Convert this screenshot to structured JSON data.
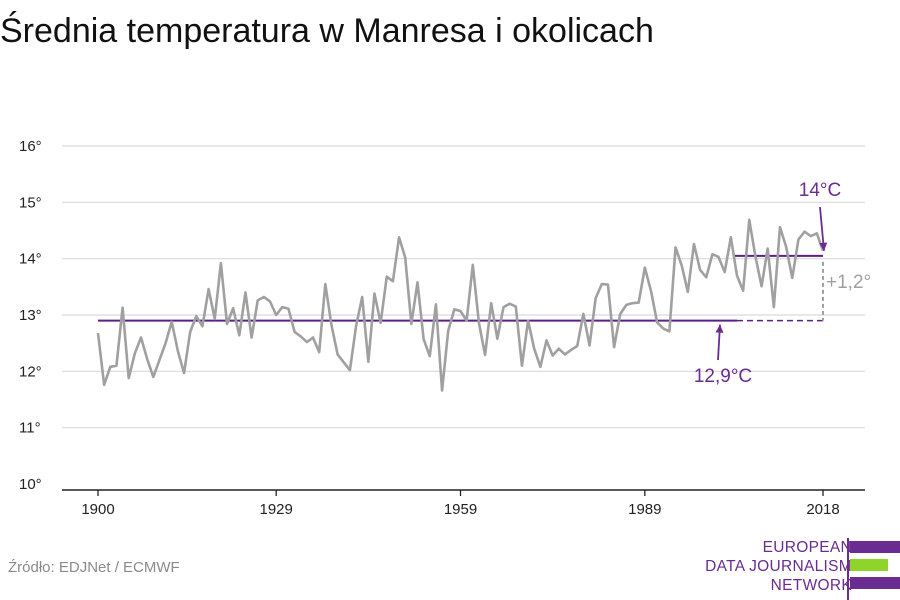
{
  "title": "Średnia temperatura w Manresa i okolicach",
  "source": "Źródło: EDJNet / ECMWF",
  "logo": {
    "lines": [
      "EUROPEAN",
      "DATA JOURNALISM",
      "NETWORK"
    ],
    "colors": {
      "purple": "#6b2c91",
      "green": "#8fd42a"
    }
  },
  "colors": {
    "series": "#a0a0a0",
    "baseline": "#5b1f86",
    "annotation": "#6b2c91",
    "delta": "#a0a0a0",
    "grid": "#d9d9d9",
    "axis": "#222222"
  },
  "chart_data": {
    "type": "line",
    "title": "Średnia temperatura w Manresa i okolicach",
    "xlabel": "",
    "ylabel": "",
    "xlim": [
      1900,
      2018
    ],
    "ylim": [
      10,
      16
    ],
    "x_ticks": [
      1900,
      1929,
      1959,
      1989,
      2018
    ],
    "y_ticks": [
      {
        "value": 10,
        "label": "10°"
      },
      {
        "value": 11,
        "label": "11°"
      },
      {
        "value": 12,
        "label": "12°"
      },
      {
        "value": 13,
        "label": "13°"
      },
      {
        "value": 14,
        "label": "14°"
      },
      {
        "value": 15,
        "label": "15°"
      },
      {
        "value": 16,
        "label": "16°"
      }
    ],
    "grid": "horizontal",
    "x_start": 1900,
    "series": [
      {
        "values": [
          12.68,
          11.76,
          12.08,
          12.1,
          13.13,
          11.88,
          12.32,
          12.6,
          12.22,
          11.9,
          12.2,
          12.5,
          12.88,
          12.36,
          11.97,
          12.7,
          12.98,
          12.8,
          13.46,
          12.93,
          13.92,
          12.84,
          13.12,
          12.64,
          13.4,
          12.6,
          13.26,
          13.32,
          13.24,
          13.0,
          13.14,
          13.11,
          12.7,
          12.62,
          12.52,
          12.6,
          12.34,
          13.55,
          12.82,
          12.3,
          12.16,
          12.02,
          12.8,
          13.32,
          12.17,
          13.38,
          12.86,
          13.68,
          13.6,
          14.38,
          14.02,
          12.84,
          13.58,
          12.57,
          12.27,
          13.19,
          11.66,
          12.72,
          13.1,
          13.07,
          12.9,
          13.89,
          12.86,
          12.29,
          13.21,
          12.58,
          13.14,
          13.2,
          13.15,
          12.1,
          12.9,
          12.4,
          12.08,
          12.55,
          12.28,
          12.4,
          12.3,
          12.38,
          12.45,
          13.02,
          12.46,
          13.3,
          13.55,
          13.54,
          12.43,
          13.02,
          13.18,
          13.21,
          13.22,
          13.84,
          13.43,
          12.87,
          12.76,
          12.71,
          14.2,
          13.88,
          13.41,
          14.26,
          13.8,
          13.67,
          14.08,
          14.03,
          13.76,
          14.38,
          13.7,
          13.43,
          14.69,
          14.04,
          13.51,
          14.18,
          13.14,
          14.56,
          14.21,
          13.66,
          14.34,
          14.48,
          14.4,
          14.45,
          14.14
        ]
      }
    ],
    "annotations": {
      "baseline": {
        "value": 12.9,
        "label": "12,9°C",
        "from": 1900,
        "to": 2004
      },
      "recent": {
        "value": 14.05,
        "label": "14°C",
        "from": 2004,
        "to": 2018
      },
      "delta": {
        "label": "+1,2°"
      }
    }
  }
}
